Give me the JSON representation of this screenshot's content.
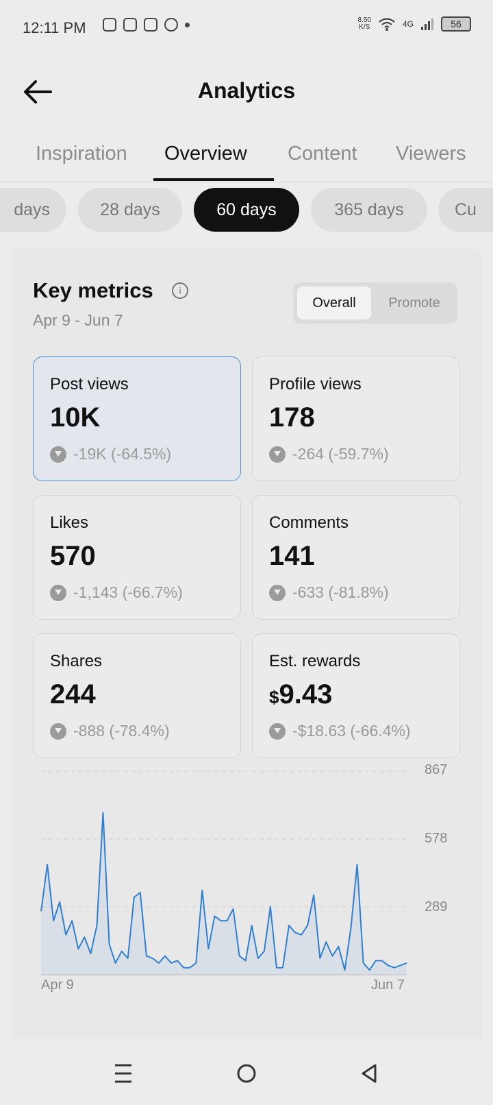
{
  "status": {
    "time": "12:11 PM",
    "speed_value": "8.50",
    "speed_unit": "K/S",
    "network": "4G",
    "battery": "56"
  },
  "header": {
    "title": "Analytics"
  },
  "tabs": [
    "Inspiration",
    "Overview",
    "Content",
    "Viewers"
  ],
  "active_tab": "Overview",
  "chips": [
    "days",
    "28 days",
    "60 days",
    "365 days",
    "Cu"
  ],
  "active_chip": "60 days",
  "key_metrics": {
    "title": "Key metrics",
    "range": "Apr 9 - Jun 7",
    "toggle": [
      "Overall",
      "Promote"
    ],
    "toggle_active": "Overall"
  },
  "metrics": [
    {
      "label": "Post views",
      "value": "10K",
      "delta": "-19K (-64.5%)",
      "selected": true
    },
    {
      "label": "Profile views",
      "value": "178",
      "delta": "-264 (-59.7%)"
    },
    {
      "label": "Likes",
      "value": "570",
      "delta": "-1,143 (-66.7%)"
    },
    {
      "label": "Comments",
      "value": "141",
      "delta": "-633 (-81.8%)"
    },
    {
      "label": "Shares",
      "value": "244",
      "delta": "-888 (-78.4%)"
    },
    {
      "label": "Est. rewards",
      "currency": "$",
      "value": "9.43",
      "delta": "-$18.63 (-66.4%)"
    }
  ],
  "colors": {
    "accent": "#2f7fd4",
    "selected_border": "#4a8fd9",
    "active_chip": "#111111"
  },
  "chart_data": {
    "type": "area",
    "yticks": [
      "867",
      "578",
      "289"
    ],
    "ylim": [
      0,
      867
    ],
    "x_start_label": "Apr 9",
    "x_end_label": "Jun 7",
    "values": [
      270,
      470,
      230,
      310,
      170,
      230,
      110,
      160,
      90,
      210,
      690,
      130,
      50,
      100,
      70,
      330,
      350,
      80,
      70,
      50,
      80,
      50,
      60,
      30,
      30,
      50,
      360,
      110,
      250,
      230,
      230,
      280,
      80,
      60,
      210,
      70,
      100,
      290,
      30,
      30,
      210,
      180,
      170,
      210,
      340,
      70,
      140,
      80,
      120,
      20,
      200,
      470,
      50,
      20,
      60,
      60,
      40,
      30,
      40,
      50
    ]
  },
  "navbar": [
    "menu-icon",
    "home-icon",
    "back-icon"
  ]
}
